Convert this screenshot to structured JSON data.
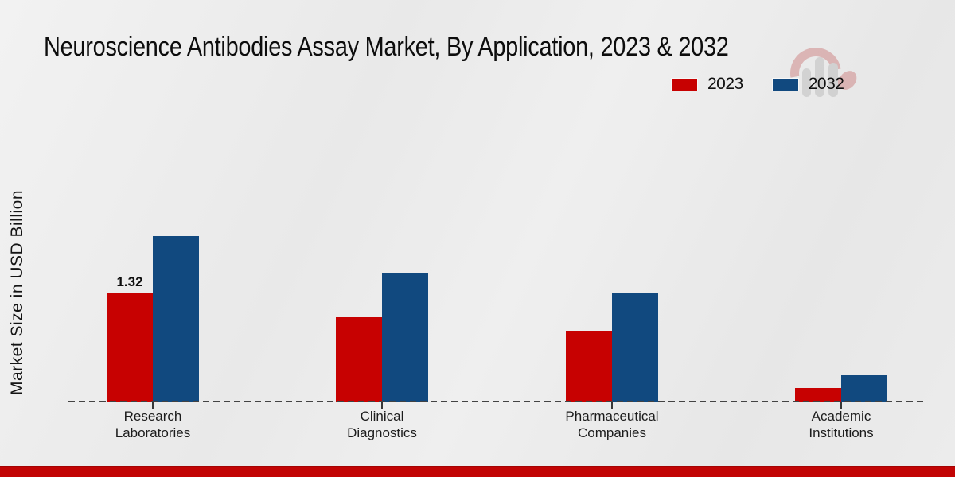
{
  "title": "Neuroscience Antibodies Assay Market, By Application, 2023 & 2032",
  "ylabel": "Market Size in USD Billion",
  "legend_position": "top-right",
  "icons": {
    "watermark": "mrfr-logo-watermark"
  },
  "brand": {
    "footer_band_color": "#c20404",
    "accent_red": "#c70101",
    "accent_blue": "#11497f"
  },
  "chart_data": {
    "type": "bar",
    "categories": [
      "Research\nLaboratories",
      "Clinical\nDiagnostics",
      "Pharmaceutical\nCompanies",
      "Academic\nInstitutions"
    ],
    "series": [
      {
        "name": "2023",
        "color": "#c70101",
        "values": [
          1.32,
          1.02,
          0.86,
          0.17
        ]
      },
      {
        "name": "2032",
        "color": "#11497f",
        "values": [
          2.0,
          1.56,
          1.32,
          0.33
        ]
      }
    ],
    "annotations": [
      {
        "category_index": 0,
        "series_index": 0,
        "text": "1.32"
      }
    ],
    "title": "Neuroscience Antibodies Assay Market, By Application, 2023 & 2032",
    "xlabel": "",
    "ylabel": "Market Size in USD Billion",
    "ylim": [
      0,
      2.2
    ],
    "grid": false,
    "baseline_style": "dashed"
  }
}
